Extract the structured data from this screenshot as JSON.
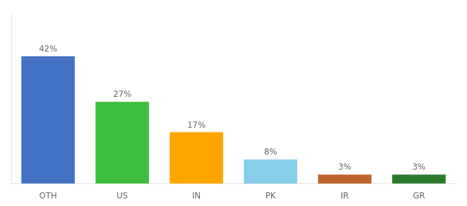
{
  "chart_data": {
    "type": "bar",
    "categories": [
      "OTH",
      "US",
      "IN",
      "PK",
      "IR",
      "GR"
    ],
    "values": [
      42,
      27,
      17,
      8,
      3,
      3
    ],
    "value_labels": [
      "42%",
      "27%",
      "17%",
      "8%",
      "3%",
      "3%"
    ],
    "colors": [
      "#4472C4",
      "#3DBE3D",
      "#FFA500",
      "#87CEEB",
      "#C0622B",
      "#2D7A2D"
    ],
    "ylim": [
      0,
      56
    ],
    "grid": false,
    "data_labels": true,
    "tick_labels": "x"
  }
}
